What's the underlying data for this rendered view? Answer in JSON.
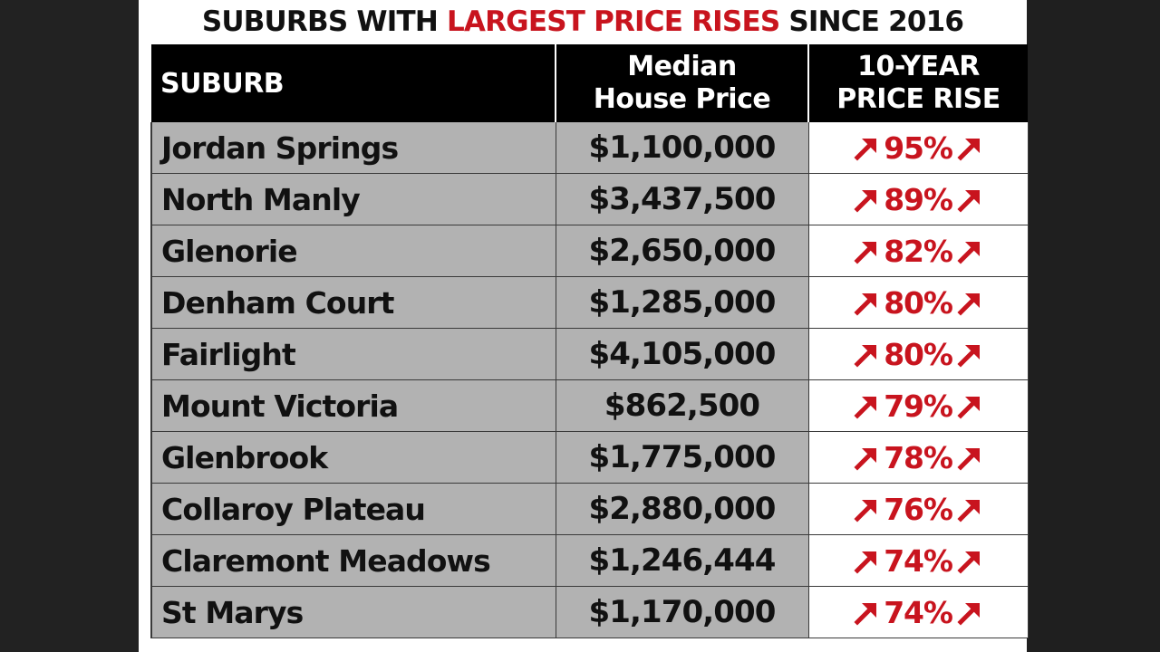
{
  "title": {
    "part1": "SUBURBS WITH ",
    "highlight": "LARGEST PRICE RISES",
    "part2": " SINCE 2016"
  },
  "colors": {
    "accent_red": "#c8141e",
    "header_bg": "#000000",
    "cell_grey": "#b2b2b2",
    "frame_dark": "#1c1c1c"
  },
  "icons": {
    "rise": "arrow-up-right-icon"
  },
  "chart_data": {
    "type": "table",
    "title": "SUBURBS WITH LARGEST PRICE RISES SINCE 2016",
    "columns": [
      {
        "lines": [
          "SUBURB"
        ]
      },
      {
        "lines": [
          "Median",
          "House Price"
        ]
      },
      {
        "lines": [
          "10-YEAR",
          "PRICE RISE"
        ]
      }
    ],
    "rows": [
      {
        "suburb": "Jordan Springs",
        "median": "$1,100,000",
        "rise": "95%",
        "rise_value": 95
      },
      {
        "suburb": "North Manly",
        "median": "$3,437,500",
        "rise": "89%",
        "rise_value": 89
      },
      {
        "suburb": "Glenorie",
        "median": "$2,650,000",
        "rise": "82%",
        "rise_value": 82
      },
      {
        "suburb": "Denham Court",
        "median": "$1,285,000",
        "rise": "80%",
        "rise_value": 80
      },
      {
        "suburb": "Fairlight",
        "median": "$4,105,000",
        "rise": "80%",
        "rise_value": 80
      },
      {
        "suburb": "Mount Victoria",
        "median": "$862,500",
        "rise": "79%",
        "rise_value": 79
      },
      {
        "suburb": "Glenbrook",
        "median": "$1,775,000",
        "rise": "78%",
        "rise_value": 78
      },
      {
        "suburb": "Collaroy Plateau",
        "median": "$2,880,000",
        "rise": "76%",
        "rise_value": 76
      },
      {
        "suburb": "Claremont Meadows",
        "median": "$1,246,444",
        "rise": "74%",
        "rise_value": 74
      },
      {
        "suburb": "St Marys",
        "median": "$1,170,000",
        "rise": "74%",
        "rise_value": 74
      }
    ]
  }
}
